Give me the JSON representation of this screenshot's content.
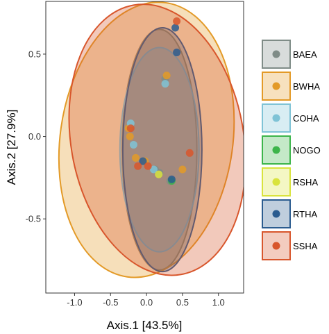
{
  "chart_data": {
    "type": "scatter",
    "xlabel": "Axis.1   [43.5%]",
    "ylabel": "Axis.2   [27.9%]",
    "xlim": [
      -1.4,
      1.35
    ],
    "ylim": [
      -0.95,
      0.82
    ],
    "xticks": [
      -1.0,
      -0.5,
      0.0,
      0.5,
      1.0
    ],
    "xtick_labels": [
      "-1.0",
      "-0.5",
      "0.0",
      "0.5",
      "1.0"
    ],
    "yticks": [
      -0.5,
      0.0,
      0.5
    ],
    "ytick_labels": [
      "-0.5",
      "0.0",
      "0.5"
    ],
    "grid": false,
    "legend_position": "right",
    "series": [
      {
        "name": "BAEA",
        "color": "#7f8c87",
        "ellipse": {
          "cx": 0.18,
          "cy": -0.08,
          "rx": 0.52,
          "ry": 0.73,
          "angle": 0
        },
        "points": [
          [
            0.12,
            -0.2
          ],
          [
            0.18,
            -0.22
          ],
          [
            0.33,
            -0.27
          ],
          [
            0.26,
            0.35
          ]
        ]
      },
      {
        "name": "BWHA",
        "color": "#e39a27",
        "ellipse": {
          "cx": 0.0,
          "cy": -0.02,
          "rx": 1.2,
          "ry": 0.84,
          "angle": 8
        },
        "points": [
          [
            -0.25,
            0.05
          ],
          [
            -0.15,
            -0.13
          ],
          [
            -0.02,
            -0.15
          ],
          [
            0.5,
            -0.2
          ],
          [
            0.28,
            0.37
          ],
          [
            -0.23,
            0.0
          ]
        ]
      },
      {
        "name": "COHA",
        "color": "#7fc3d6",
        "ellipse": {
          "cx": 0.18,
          "cy": -0.08,
          "rx": 0.55,
          "ry": 0.62,
          "angle": 0
        },
        "points": [
          [
            -0.22,
            0.08
          ],
          [
            0.26,
            0.32
          ],
          [
            -0.18,
            -0.05
          ],
          [
            0.1,
            -0.2
          ]
        ]
      },
      {
        "name": "NOGO",
        "color": "#3cb54a",
        "ellipse": null,
        "points": [
          [
            0.35,
            -0.27
          ]
        ]
      },
      {
        "name": "RSHA",
        "color": "#d9e33d",
        "ellipse": null,
        "points": [
          [
            0.17,
            -0.23
          ]
        ]
      },
      {
        "name": "RTHA",
        "color": "#2b5c8f",
        "ellipse": {
          "cx": 0.22,
          "cy": -0.08,
          "rx": 0.55,
          "ry": 0.74,
          "angle": 0
        },
        "points": [
          [
            0.42,
            0.51
          ],
          [
            0.4,
            0.66
          ],
          [
            -0.05,
            -0.15
          ],
          [
            0.35,
            -0.26
          ]
        ]
      },
      {
        "name": "SSHA",
        "color": "#d8562c",
        "ellipse": {
          "cx": 0.15,
          "cy": -0.02,
          "rx": 1.2,
          "ry": 0.83,
          "angle": -10
        },
        "points": [
          [
            0.42,
            0.7
          ],
          [
            0.6,
            -0.1
          ],
          [
            -0.12,
            -0.18
          ],
          [
            0.02,
            -0.18
          ],
          [
            -0.22,
            0.05
          ]
        ]
      }
    ]
  }
}
